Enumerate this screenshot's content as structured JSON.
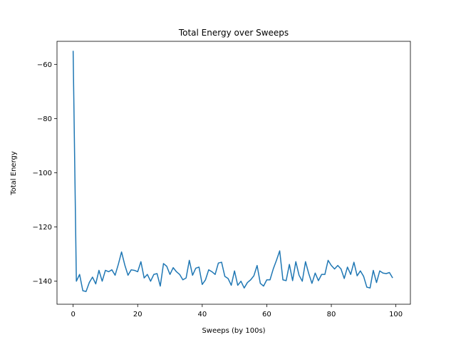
{
  "chart_data": {
    "type": "line",
    "title": "Total Energy over Sweeps",
    "xlabel": "Sweeps (by 100s)",
    "ylabel": "Total Energy",
    "xlim": [
      -5,
      104.5
    ],
    "ylim": [
      -148.5,
      -51.5
    ],
    "xticks": [
      0,
      20,
      40,
      60,
      80,
      100
    ],
    "yticks": [
      -140,
      -120,
      -100,
      -80,
      -60
    ],
    "grid": false,
    "line_color": "#1f77b4",
    "series": [
      {
        "x": [
          0,
          1,
          2,
          3,
          4,
          5,
          6,
          7,
          8,
          9,
          10,
          11,
          12,
          13,
          14,
          15,
          16,
          17,
          18,
          19,
          20,
          21,
          22,
          23,
          24,
          25,
          26,
          27,
          28,
          29,
          30,
          31,
          32,
          33,
          34,
          35,
          36,
          37,
          38,
          39,
          40,
          41,
          42,
          43,
          44,
          45,
          46,
          47,
          48,
          49,
          50,
          51,
          52,
          53,
          54,
          55,
          56,
          57,
          58,
          59,
          60,
          61,
          62,
          63,
          64,
          65,
          66,
          67,
          68,
          69,
          70,
          71,
          72,
          73,
          74,
          75,
          76,
          77,
          78,
          79,
          80,
          81,
          82,
          83,
          84,
          85,
          86,
          87,
          88,
          89,
          90,
          91,
          92,
          93,
          94,
          95,
          96,
          97,
          98,
          99
        ],
        "y": [
          -55,
          -140,
          -137.5,
          -143.5,
          -143.8,
          -140.5,
          -138.5,
          -141,
          -136,
          -140,
          -136,
          -136.5,
          -135.8,
          -137.8,
          -133.8,
          -129.2,
          -134,
          -137.8,
          -135.8,
          -136,
          -136.5,
          -132.8,
          -138.8,
          -137.5,
          -140,
          -137.5,
          -137.2,
          -141.8,
          -133.5,
          -134.5,
          -137.5,
          -135,
          -136.5,
          -137.5,
          -139.5,
          -138.8,
          -132.3,
          -137.8,
          -135.2,
          -134.8,
          -141.2,
          -139.5,
          -135.8,
          -136.5,
          -137.5,
          -133.3,
          -133,
          -138.2,
          -139,
          -141.5,
          -136.2,
          -141.5,
          -140,
          -142.5,
          -140.5,
          -139.5,
          -138,
          -134.2,
          -140.8,
          -141.8,
          -139.5,
          -139.5,
          -135.5,
          -132.3,
          -128.8,
          -139.5,
          -139.8,
          -133.8,
          -139.8,
          -132.8,
          -137.8,
          -140,
          -132.8,
          -137.2,
          -140.8,
          -137,
          -139.8,
          -137.5,
          -137.5,
          -132.3,
          -134.2,
          -135.5,
          -134.2,
          -135.5,
          -139,
          -134.8,
          -137.5,
          -133,
          -138,
          -136.2,
          -138.2,
          -142.2,
          -142.5,
          -136,
          -140.5,
          -136.2,
          -137,
          -137.2,
          -136.8,
          -138.8
        ]
      }
    ]
  }
}
